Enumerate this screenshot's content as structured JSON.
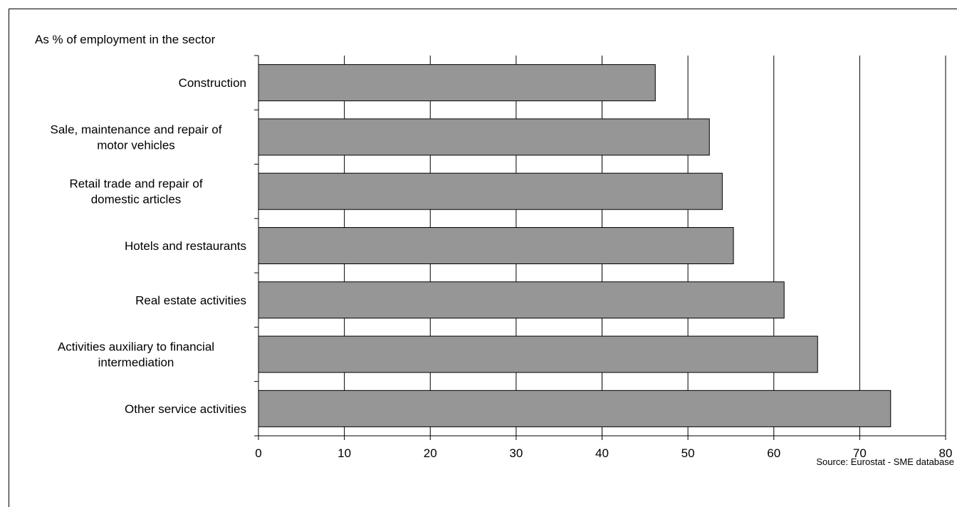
{
  "chart_data": {
    "type": "bar",
    "orientation": "horizontal",
    "subtitle": "As % of employment in the sector",
    "categories": [
      [
        "Construction"
      ],
      [
        "Sale, maintenance and repair of",
        "motor vehicles"
      ],
      [
        "Retail trade and repair of",
        "domestic articles"
      ],
      [
        "Hotels and restaurants"
      ],
      [
        "Real estate activities"
      ],
      [
        "Activities auxiliary to financial",
        "intermediation"
      ],
      [
        "Other service activities"
      ]
    ],
    "values": [
      46.2,
      52.5,
      54.0,
      55.3,
      61.2,
      65.1,
      73.6
    ],
    "xlim": [
      0,
      80
    ],
    "xticks": [
      "0",
      "10",
      "20",
      "30",
      "40",
      "50",
      "60",
      "70",
      "80"
    ],
    "grid": true,
    "bar_color": "#969696",
    "source": "Source: Eurostat  - SME database"
  }
}
